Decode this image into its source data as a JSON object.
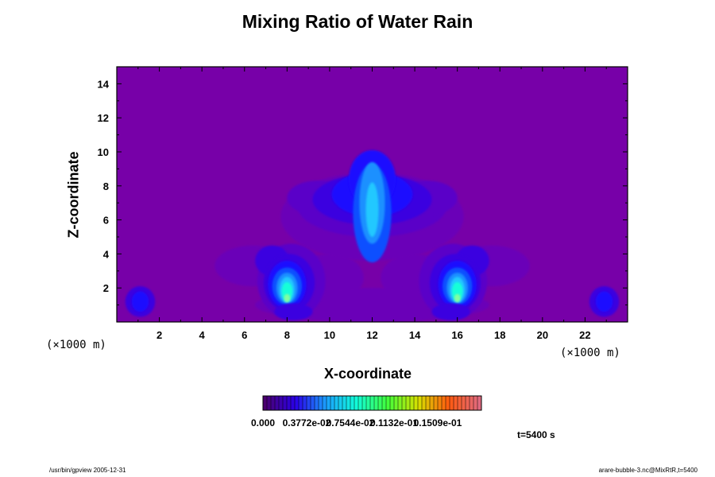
{
  "chart_data": {
    "type": "heatmap",
    "title": "Mixing Ratio of Water Rain",
    "xlabel": "X-coordinate",
    "ylabel": "Z-coordinate",
    "x_unit": "(×1000 m)",
    "y_unit": "(×1000 m)",
    "xlim": [
      0,
      24
    ],
    "ylim": [
      0,
      15
    ],
    "x_ticks": [
      2,
      4,
      6,
      8,
      10,
      12,
      14,
      16,
      18,
      20,
      22
    ],
    "y_ticks": [
      2,
      4,
      6,
      8,
      10,
      12,
      14
    ],
    "colorbar": {
      "labels": [
        "0.000",
        "0.3772e-02",
        "0.7544e-02",
        "0.1132e-01",
        "0.1509e-01"
      ],
      "range": [
        0,
        0.01509
      ],
      "colormap": [
        "#4b0070",
        "#2a00e8",
        "#1aa0ff",
        "#12ffd8",
        "#41ff3a",
        "#d8e000",
        "#ff5a10",
        "#e06a80"
      ]
    },
    "background_color": "#7700a8",
    "features": [
      {
        "name": "central plume",
        "x": 12,
        "z": 7.5,
        "peak": 0.0045
      },
      {
        "name": "left core",
        "x": 8,
        "z": 2.0,
        "peak": 0.0055
      },
      {
        "name": "right core",
        "x": 16,
        "z": 2.0,
        "peak": 0.0055
      },
      {
        "name": "left edge cell",
        "x": 1.1,
        "z": 1.2,
        "peak": 0.0025
      },
      {
        "name": "right edge cell",
        "x": 22.9,
        "z": 1.2,
        "peak": 0.0025
      }
    ]
  },
  "time_label": "t=5400 s",
  "footer_left": "/usr/bin/gpview 2005-12-31",
  "footer_right": "arare-bubble-3.nc@MixRtR,t=5400"
}
